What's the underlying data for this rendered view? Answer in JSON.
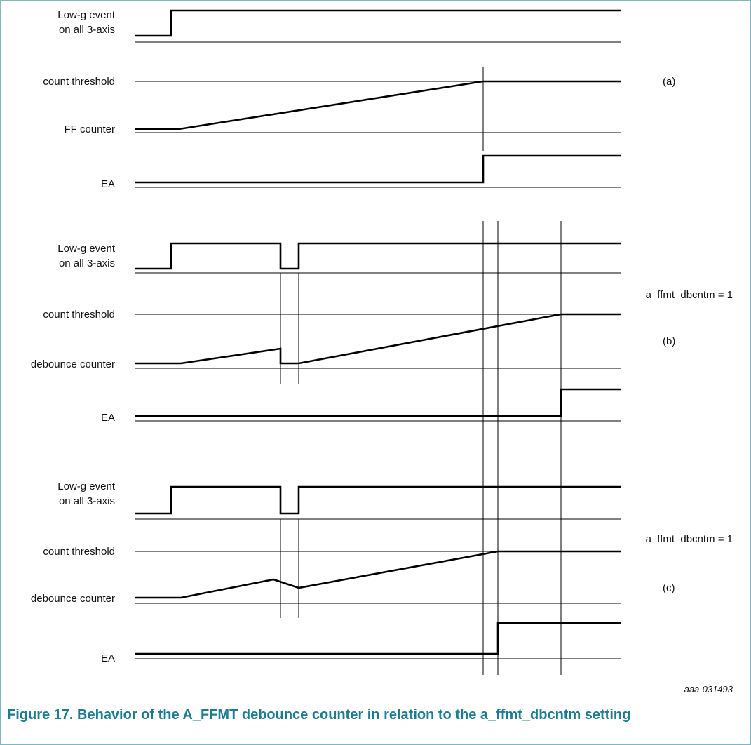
{
  "panels": [
    {
      "tag": "(a)",
      "note": "",
      "labels": {
        "event": [
          "Low-g event",
          "on all 3-axis"
        ],
        "threshold": "count threshold",
        "counter": "FF counter",
        "output": "EA"
      }
    },
    {
      "tag": "(b)",
      "note": "a_ffmt_dbcntm = 1",
      "labels": {
        "event": [
          "Low-g event",
          "on all 3-axis"
        ],
        "threshold": "count threshold",
        "counter": "debounce counter",
        "output": "EA"
      }
    },
    {
      "tag": "(c)",
      "note": "a_ffmt_dbcntm = 1",
      "labels": {
        "event": [
          "Low-g event",
          "on all 3-axis"
        ],
        "threshold": "count threshold",
        "counter": "debounce counter",
        "output": "EA"
      }
    }
  ],
  "figure_ref": "aaa-031493",
  "caption": "Figure 17.  Behavior of the A_FFMT debounce counter in relation to the a_ffmt_dbcntm setting"
}
